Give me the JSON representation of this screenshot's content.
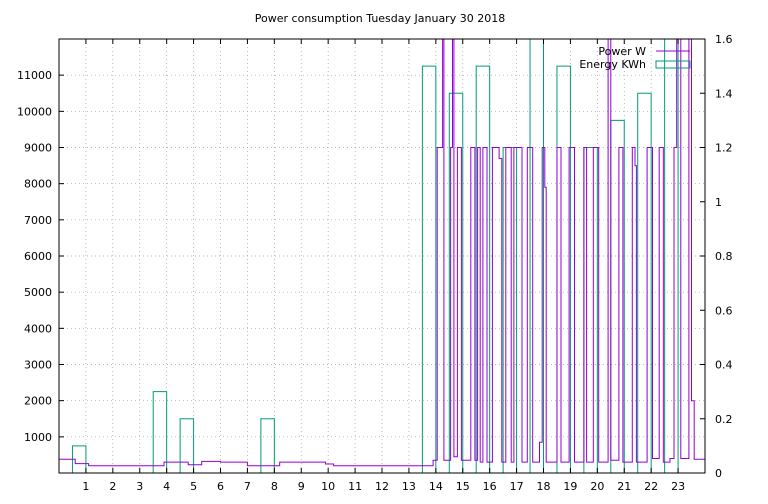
{
  "chart_data": {
    "type": "line",
    "title": "Power consumption Tuesday January 30 2018",
    "xlabel": "",
    "ylabel": "",
    "y2label": "",
    "xlim": [
      0,
      24
    ],
    "ylim": [
      0,
      12000
    ],
    "y2lim": [
      0,
      1.6
    ],
    "grid": true,
    "legend_position": "top-right",
    "x_ticks": [
      1,
      2,
      3,
      4,
      5,
      6,
      7,
      8,
      9,
      10,
      11,
      12,
      13,
      14,
      15,
      16,
      17,
      18,
      19,
      20,
      21,
      22,
      23
    ],
    "y_ticks": [
      1000,
      2000,
      3000,
      4000,
      5000,
      6000,
      7000,
      8000,
      9000,
      10000,
      11000
    ],
    "y2_ticks": [
      0,
      0.2,
      0.4,
      0.6,
      0.8,
      1,
      1.2,
      1.4,
      1.6
    ],
    "series": [
      {
        "name": "Power W",
        "axis": "y",
        "color": "#9400d3",
        "style": "line",
        "points": [
          [
            0,
            380
          ],
          [
            0.6,
            380
          ],
          [
            0.6,
            260
          ],
          [
            1.1,
            260
          ],
          [
            1.1,
            200
          ],
          [
            3.9,
            200
          ],
          [
            3.9,
            300
          ],
          [
            4.8,
            300
          ],
          [
            4.8,
            230
          ],
          [
            5.3,
            230
          ],
          [
            5.3,
            320
          ],
          [
            6.0,
            320
          ],
          [
            6.0,
            300
          ],
          [
            7.0,
            300
          ],
          [
            7.0,
            200
          ],
          [
            8.2,
            200
          ],
          [
            8.2,
            300
          ],
          [
            9.9,
            300
          ],
          [
            9.9,
            250
          ],
          [
            10.2,
            250
          ],
          [
            10.2,
            200
          ],
          [
            13.9,
            200
          ],
          [
            13.9,
            350
          ],
          [
            14.05,
            350
          ],
          [
            14.05,
            9000
          ],
          [
            14.25,
            9000
          ],
          [
            14.25,
            12000
          ],
          [
            14.3,
            12000
          ],
          [
            14.3,
            350
          ],
          [
            14.55,
            350
          ],
          [
            14.55,
            9000
          ],
          [
            14.62,
            9000
          ],
          [
            14.62,
            12000
          ],
          [
            14.67,
            12000
          ],
          [
            14.67,
            450
          ],
          [
            14.8,
            450
          ],
          [
            14.8,
            9000
          ],
          [
            14.95,
            9000
          ],
          [
            14.95,
            350
          ],
          [
            15.3,
            350
          ],
          [
            15.3,
            9000
          ],
          [
            15.45,
            9000
          ],
          [
            15.45,
            350
          ],
          [
            15.55,
            350
          ],
          [
            15.55,
            9000
          ],
          [
            15.65,
            9000
          ],
          [
            15.65,
            300
          ],
          [
            15.75,
            300
          ],
          [
            15.75,
            9000
          ],
          [
            15.9,
            9000
          ],
          [
            15.9,
            300
          ],
          [
            16.1,
            300
          ],
          [
            16.1,
            9000
          ],
          [
            16.35,
            9000
          ],
          [
            16.35,
            8700
          ],
          [
            16.45,
            8700
          ],
          [
            16.45,
            300
          ],
          [
            16.6,
            300
          ],
          [
            16.6,
            9000
          ],
          [
            16.8,
            9000
          ],
          [
            16.8,
            300
          ],
          [
            16.9,
            300
          ],
          [
            16.9,
            9000
          ],
          [
            17.2,
            9000
          ],
          [
            17.2,
            300
          ],
          [
            17.4,
            300
          ],
          [
            17.4,
            9000
          ],
          [
            17.6,
            9000
          ],
          [
            17.6,
            300
          ],
          [
            17.85,
            300
          ],
          [
            17.85,
            850
          ],
          [
            17.95,
            850
          ],
          [
            17.95,
            9000
          ],
          [
            18.05,
            9000
          ],
          [
            18.05,
            7900
          ],
          [
            18.1,
            7900
          ],
          [
            18.1,
            300
          ],
          [
            18.5,
            300
          ],
          [
            18.5,
            9000
          ],
          [
            18.65,
            9000
          ],
          [
            18.65,
            300
          ],
          [
            18.95,
            300
          ],
          [
            18.95,
            9000
          ],
          [
            19.15,
            9000
          ],
          [
            19.15,
            300
          ],
          [
            19.5,
            300
          ],
          [
            19.5,
            9000
          ],
          [
            19.6,
            9000
          ],
          [
            19.6,
            300
          ],
          [
            19.85,
            300
          ],
          [
            19.85,
            9000
          ],
          [
            20.05,
            9000
          ],
          [
            20.05,
            300
          ],
          [
            20.4,
            300
          ],
          [
            20.4,
            12000
          ],
          [
            20.5,
            12000
          ],
          [
            20.5,
            350
          ],
          [
            20.8,
            350
          ],
          [
            20.8,
            9000
          ],
          [
            20.95,
            9000
          ],
          [
            20.95,
            300
          ],
          [
            21.3,
            300
          ],
          [
            21.3,
            9000
          ],
          [
            21.4,
            9000
          ],
          [
            21.4,
            8500
          ],
          [
            21.45,
            8500
          ],
          [
            21.45,
            300
          ],
          [
            21.85,
            300
          ],
          [
            21.85,
            9000
          ],
          [
            22.05,
            9000
          ],
          [
            22.05,
            400
          ],
          [
            22.3,
            400
          ],
          [
            22.3,
            9000
          ],
          [
            22.45,
            9000
          ],
          [
            22.45,
            300
          ],
          [
            22.7,
            300
          ],
          [
            22.7,
            400
          ],
          [
            22.85,
            400
          ],
          [
            22.85,
            9000
          ],
          [
            22.95,
            9000
          ],
          [
            22.95,
            12000
          ],
          [
            23.1,
            12000
          ],
          [
            23.1,
            400
          ],
          [
            23.4,
            400
          ],
          [
            23.4,
            12000
          ],
          [
            23.5,
            12000
          ],
          [
            23.5,
            2000
          ],
          [
            23.6,
            2000
          ],
          [
            23.6,
            380
          ],
          [
            24,
            380
          ]
        ]
      },
      {
        "name": "Energy KWh",
        "axis": "y2",
        "color": "#009e73",
        "style": "boxes",
        "bars": [
          [
            0.5,
            1.0,
            0.1
          ],
          [
            3.5,
            4.0,
            0.3
          ],
          [
            4.5,
            5.0,
            0.2
          ],
          [
            7.5,
            8.0,
            0.2
          ],
          [
            13.5,
            14.0,
            1.5
          ],
          [
            14.5,
            15.0,
            1.4
          ],
          [
            15.5,
            16.0,
            1.5
          ],
          [
            16.5,
            17.0,
            1.2
          ],
          [
            17.5,
            18.0,
            1.65
          ],
          [
            18.5,
            19.0,
            1.5
          ],
          [
            19.5,
            20.0,
            1.2
          ],
          [
            20.5,
            21.0,
            1.3
          ],
          [
            21.5,
            22.0,
            1.4
          ],
          [
            22.5,
            23.0,
            1.65
          ]
        ]
      }
    ]
  }
}
